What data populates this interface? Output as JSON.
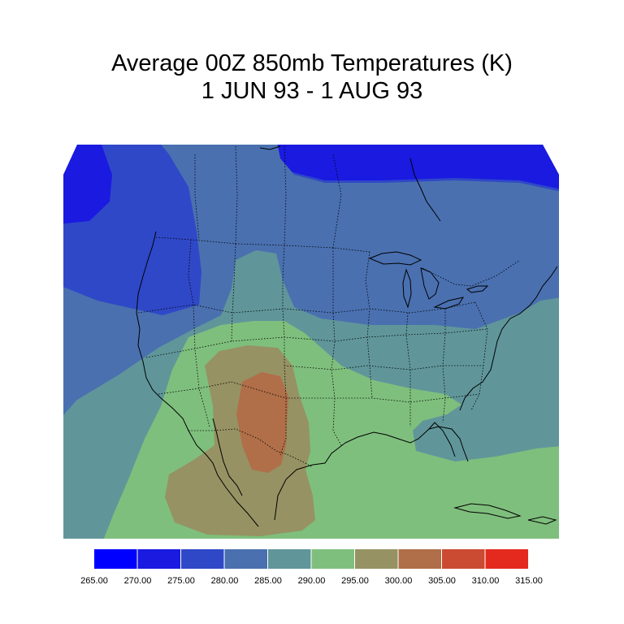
{
  "title": {
    "line1": "Average 00Z 850mb Temperatures (K)",
    "line2": "1 JUN 93 - 1 AUG 93"
  },
  "legend": {
    "labels": [
      "265.00",
      "270.00",
      "275.00",
      "280.00",
      "285.00",
      "290.00",
      "295.00",
      "300.00",
      "305.00",
      "310.00",
      "315.00"
    ],
    "colors": [
      "#0000ff",
      "#1a1ae0",
      "#2f48c8",
      "#4a70b0",
      "#60969a",
      "#7fbf7d",
      "#969263",
      "#b06f48",
      "#ca4a32",
      "#e42a1e"
    ]
  },
  "map": {
    "field": "850mb temperature (K)",
    "region": "Continental United States",
    "contour_interval_K": 5
  }
}
